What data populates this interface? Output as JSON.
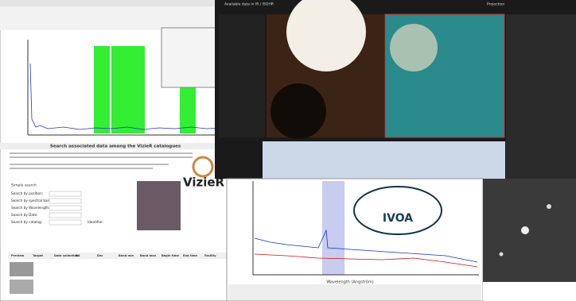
{
  "vizier_page": {
    "heading": "Search associated data among the VizieR catalogues",
    "logo": "VizieR",
    "section": "Simple search",
    "form_labels": [
      "Search by position:",
      "Search by spectral band:",
      "Search by Wavelength:",
      "Search by Date:",
      "Search by catalog:"
    ],
    "identifier": "Identifier:",
    "table_headers": [
      "Preview",
      "Target",
      "Data collection",
      "RA",
      "Dec",
      "Band min",
      "Band max",
      "Begin time",
      "End time",
      "Facility"
    ]
  },
  "aladin": {
    "title": "Available data in IR / ISOHR",
    "projection": "Projection"
  },
  "ivoa": {
    "logo": "IVOA",
    "x_label": "Wavelength (Angström)"
  }
}
